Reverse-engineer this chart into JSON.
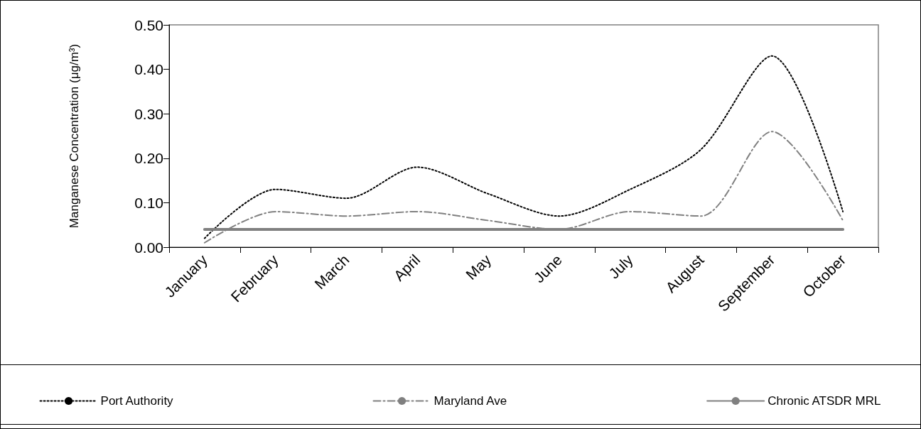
{
  "chart_data": {
    "type": "line",
    "ylabel": "Manganese Concentration (μg/m³)",
    "categories": [
      "January",
      "February",
      "March",
      "April",
      "May",
      "June",
      "July",
      "August",
      "September",
      "October"
    ],
    "series": [
      {
        "name": "Port Authority",
        "color": "#000000",
        "line_style": "dotted",
        "values": [
          0.02,
          0.13,
          0.11,
          0.18,
          0.12,
          0.07,
          0.13,
          0.22,
          0.43,
          0.08
        ]
      },
      {
        "name": "Maryland Ave",
        "color": "#808080",
        "line_style": "dashed",
        "values": [
          0.01,
          0.08,
          0.07,
          0.08,
          0.06,
          0.04,
          0.08,
          0.07,
          0.26,
          0.06
        ]
      },
      {
        "name": "Chronic ATSDR MRL",
        "color": "#808080",
        "line_style": "solid",
        "values": [
          0.04,
          0.04,
          0.04,
          0.04,
          0.04,
          0.04,
          0.04,
          0.04,
          0.04,
          0.04
        ]
      }
    ],
    "ylim": [
      0,
      0.5
    ],
    "yticks": [
      {
        "value": 0,
        "label": "0.00"
      },
      {
        "value": 0.1,
        "label": "0.10"
      },
      {
        "value": 0.2,
        "label": "0.20"
      },
      {
        "value": 0.3,
        "label": "0.30"
      },
      {
        "value": 0.4,
        "label": "0.40"
      },
      {
        "value": 0.5,
        "label": "0.50"
      }
    ],
    "grid": false,
    "legend": "bottom",
    "marker": "none"
  }
}
